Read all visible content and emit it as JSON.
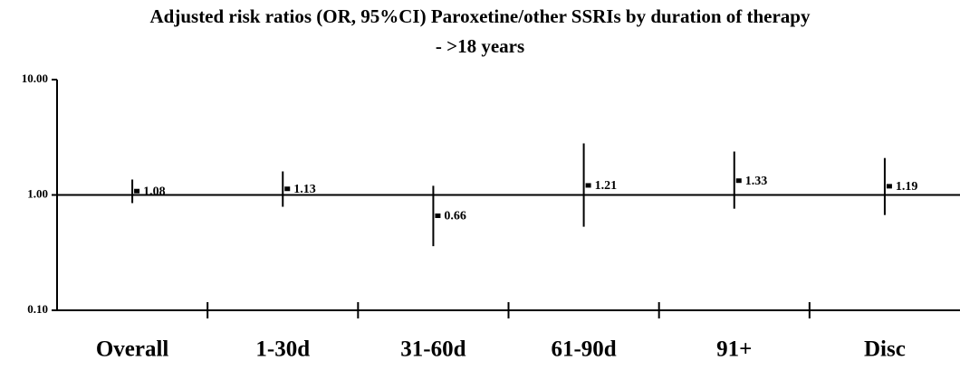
{
  "chart_data": {
    "type": "errorbar",
    "title": [
      "Adjusted risk ratios (OR, 95%CI) Paroxetine/other SSRIs by duration of therapy",
      "- >18 years"
    ],
    "categories": [
      "Overall",
      "1-30d",
      "31-60d",
      "61-90d",
      "91+",
      "Disc"
    ],
    "values": [
      1.08,
      1.13,
      0.66,
      1.21,
      1.33,
      1.19
    ],
    "lower": [
      0.85,
      0.79,
      0.36,
      0.53,
      0.76,
      0.67
    ],
    "upper": [
      1.36,
      1.6,
      1.2,
      2.8,
      2.38,
      2.09
    ],
    "color": "#000000",
    "log_scale": true,
    "ylim": [
      0.1,
      10
    ],
    "yticks": [
      {
        "value": 0.1,
        "label": "0.10"
      },
      {
        "value": 1,
        "label": "1.00"
      },
      {
        "value": 10,
        "label": "10.00"
      }
    ],
    "reference_line": 1
  }
}
